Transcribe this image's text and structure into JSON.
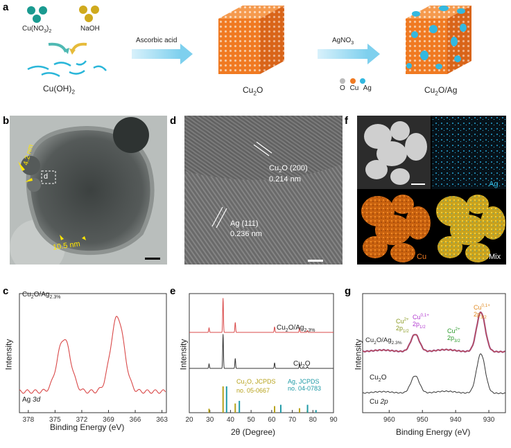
{
  "panels": {
    "a": "a",
    "b": "b",
    "c": "c",
    "d": "d",
    "e": "e",
    "f": "f",
    "g": "g"
  },
  "scheme": {
    "cu_no3": "Cu(NO",
    "cu_no3_sub": "3",
    "cu_no3_close": ")",
    "cu_no3_sub2": "2",
    "naoh": "NaOH",
    "cuoh": "Cu(OH)",
    "cuoh_sub": "2",
    "step1": "Ascorbic acid",
    "step2": "AgNO",
    "step2_sub": "3",
    "cu2o": "Cu",
    "cu2o_sub": "2",
    "cu2o_o": "O",
    "cu2oag": "Cu",
    "cu2oag_sub": "2",
    "cu2oag_rest": "O/Ag",
    "legend_o": "O",
    "legend_cu": "Cu",
    "legend_ag": "Ag",
    "colors": {
      "cube": "#f07a22",
      "ag": "#33b8e0",
      "arrow": "#7ed0ee",
      "ion1": "#1a9a90",
      "ion2": "#d0aa1e",
      "wire": "#2ab6d9"
    }
  },
  "tem_b": {
    "d_box": "d",
    "thickness1": "4.2 nm",
    "thickness2": "10.5 nm"
  },
  "hrtem_d": {
    "label1": "Cu",
    "label1_sub": "2",
    "label1_rest": "O (200)",
    "spacing1": "0.214 nm",
    "label2": "Ag (111)",
    "spacing2": "0.236 nm"
  },
  "eds_f": {
    "ag": "Ag",
    "cu": "Cu",
    "mix": "Mix"
  },
  "chart_c": {
    "type": "line",
    "sample": "Cu",
    "sample_sub": "2",
    "sample_rest": "O/Ag",
    "sample_sub2": "2.3%",
    "region": "Ag ",
    "region_italic": "3d",
    "xlabel": "Binding Energy (eV)",
    "ylabel": "Intensity",
    "xticks": [
      "378",
      "375",
      "372",
      "369",
      "366",
      "363"
    ],
    "xlim": [
      379,
      362.5
    ],
    "peaks": [
      {
        "x": 374.0,
        "height": 0.58
      },
      {
        "x": 368.0,
        "height": 0.82
      }
    ],
    "color": "#d94848"
  },
  "chart_e": {
    "type": "line",
    "xlabel": "2θ (Degree)",
    "ylabel": "Intensity",
    "xticks": [
      "20",
      "30",
      "40",
      "50",
      "60",
      "70",
      "80",
      "90"
    ],
    "xlim": [
      20,
      90
    ],
    "series": [
      {
        "name": "Cu2O/Ag2.3%",
        "color": "#d94848",
        "peaks": [
          [
            29.6,
            0.07
          ],
          [
            36.4,
            0.55
          ],
          [
            42.3,
            0.16
          ],
          [
            61.4,
            0.09
          ],
          [
            73.5,
            0.07
          ],
          [
            77.3,
            0.03
          ]
        ]
      },
      {
        "name": "Cu2O",
        "color": "#333333",
        "peaks": [
          [
            29.6,
            0.07
          ],
          [
            36.4,
            0.55
          ],
          [
            42.3,
            0.16
          ],
          [
            61.4,
            0.09
          ],
          [
            73.5,
            0.07
          ],
          [
            77.3,
            0.03
          ]
        ]
      }
    ],
    "label_series1": "Cu",
    "label_series1_sub": "2",
    "label_series1_rest": "O/Ag",
    "label_series1_sub2": "2.3%",
    "label_series2": "Cu",
    "label_series2_sub": "2",
    "label_series2_rest": "O",
    "ref1_l1": "Cu",
    "ref1_l1_sub": "2",
    "ref1_l1_rest": "O, JCPDS",
    "ref1_l2": "no. 05-0667",
    "ref2_l1": "Ag, JCPDS",
    "ref2_l2": "no. 04-0783",
    "ref1_color": "#b7a21a",
    "ref2_color": "#1e9aa6",
    "ref1_sticks": [
      [
        29.6,
        0.15
      ],
      [
        36.4,
        1.0
      ],
      [
        42.3,
        0.35
      ],
      [
        61.4,
        0.25
      ],
      [
        73.5,
        0.17
      ],
      [
        77.3,
        0.08
      ]
    ],
    "ref2_sticks": [
      [
        38.1,
        1.0
      ],
      [
        44.3,
        0.45
      ],
      [
        64.4,
        0.3
      ],
      [
        77.4,
        0.3
      ],
      [
        81.5,
        0.1
      ]
    ]
  },
  "chart_g": {
    "type": "line",
    "xlabel": "Binding Energy (eV)",
    "ylabel": "Intensity",
    "xticks": [
      "960",
      "950",
      "940",
      "930"
    ],
    "xlim": [
      968,
      925
    ],
    "sample1": "Cu",
    "sample1_sub": "2",
    "sample1_rest": "O/Ag",
    "sample1_sub2": "2.3%",
    "sample2": "Cu",
    "sample2_sub": "2",
    "sample2_rest": "O",
    "region": "Cu ",
    "region_italic": "2p",
    "ann1_a": "Cu",
    "ann1_a_sup": "2+",
    "ann1_b": "2p",
    "ann1_b_sub": "1/2",
    "ann2_a": "Cu",
    "ann2_a_sup": "0,1+",
    "ann2_b": "2p",
    "ann2_b_sub": "1/2",
    "ann3_a": "Cu",
    "ann3_a_sup": "2+",
    "ann3_b": "2p",
    "ann3_b_sub": "3/2",
    "ann4_a": "Cu",
    "ann4_a_sup": "0,1+",
    "ann4_b": "2p",
    "ann4_b_sub": "3/2",
    "ann_colors": {
      "c1": "#8a9a22",
      "c2": "#b23ad0",
      "c3": "#2b9a2b",
      "c4": "#e08a22"
    },
    "peaks": [
      {
        "x": 952.2,
        "height": 0.42
      },
      {
        "x": 932.4,
        "height": 0.95
      }
    ]
  }
}
